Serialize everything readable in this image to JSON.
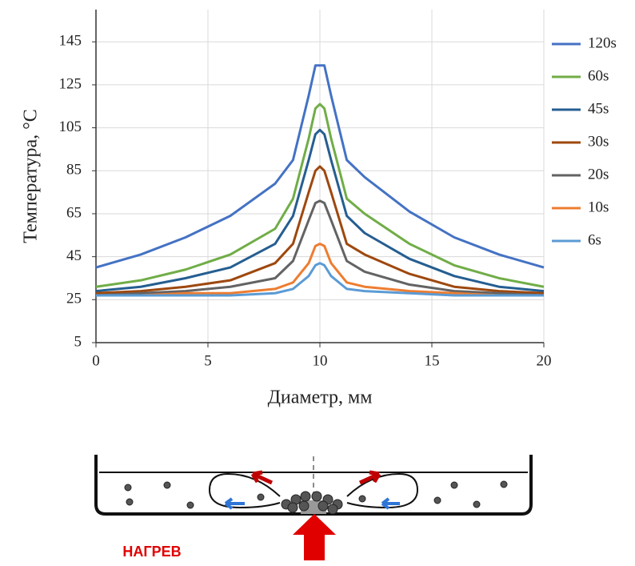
{
  "chart_data": {
    "type": "line",
    "x": [
      0,
      2,
      4,
      6,
      8,
      8.8,
      9.5,
      9.8,
      10,
      10.2,
      10.5,
      11.2,
      12,
      14,
      16,
      18,
      20
    ],
    "series": [
      {
        "name": "120s",
        "color": "#4472c4",
        "values": [
          40,
          46,
          54,
          64,
          79,
          90,
          120,
          134,
          134,
          134,
          120,
          90,
          82,
          66,
          54,
          46,
          40
        ]
      },
      {
        "name": "60s",
        "color": "#70ad47",
        "values": [
          31,
          34,
          39,
          46,
          58,
          72,
          100,
          114,
          116,
          114,
          100,
          72,
          65,
          51,
          41,
          35,
          31
        ]
      },
      {
        "name": "45s",
        "color": "#255e91",
        "values": [
          29,
          31,
          35,
          40,
          51,
          64,
          90,
          102,
          104,
          102,
          90,
          64,
          56,
          44,
          36,
          31,
          29
        ]
      },
      {
        "name": "30s",
        "color": "#9e480e",
        "values": [
          28,
          29,
          31,
          34,
          42,
          51,
          75,
          85,
          87,
          85,
          75,
          51,
          46,
          37,
          31,
          29,
          28
        ]
      },
      {
        "name": "20s",
        "color": "#636363",
        "values": [
          27,
          28,
          29,
          31,
          35,
          43,
          62,
          70,
          71,
          70,
          62,
          43,
          38,
          32,
          29,
          28,
          27
        ]
      },
      {
        "name": "10s",
        "color": "#ed7d31",
        "values": [
          27,
          27,
          28,
          28,
          30,
          33,
          42,
          50,
          51,
          50,
          42,
          33,
          31,
          29,
          28,
          27,
          27
        ]
      },
      {
        "name": "6s",
        "color": "#5b9bd5",
        "values": [
          27,
          27,
          27,
          27,
          28,
          30,
          36,
          41,
          42,
          41,
          36,
          30,
          29,
          28,
          27,
          27,
          27
        ]
      }
    ],
    "x_label": "Диаметр, мм",
    "y_label": "Температура, °C",
    "xlim": [
      0,
      20
    ],
    "xticks": [
      0,
      5,
      10,
      15,
      20
    ],
    "ylim": [
      5,
      160
    ],
    "yticks": [
      5,
      25,
      45,
      65,
      85,
      105,
      125,
      145
    ],
    "grid": true,
    "legend": "right"
  },
  "diagram": {
    "label": "НАГРЕВ"
  }
}
